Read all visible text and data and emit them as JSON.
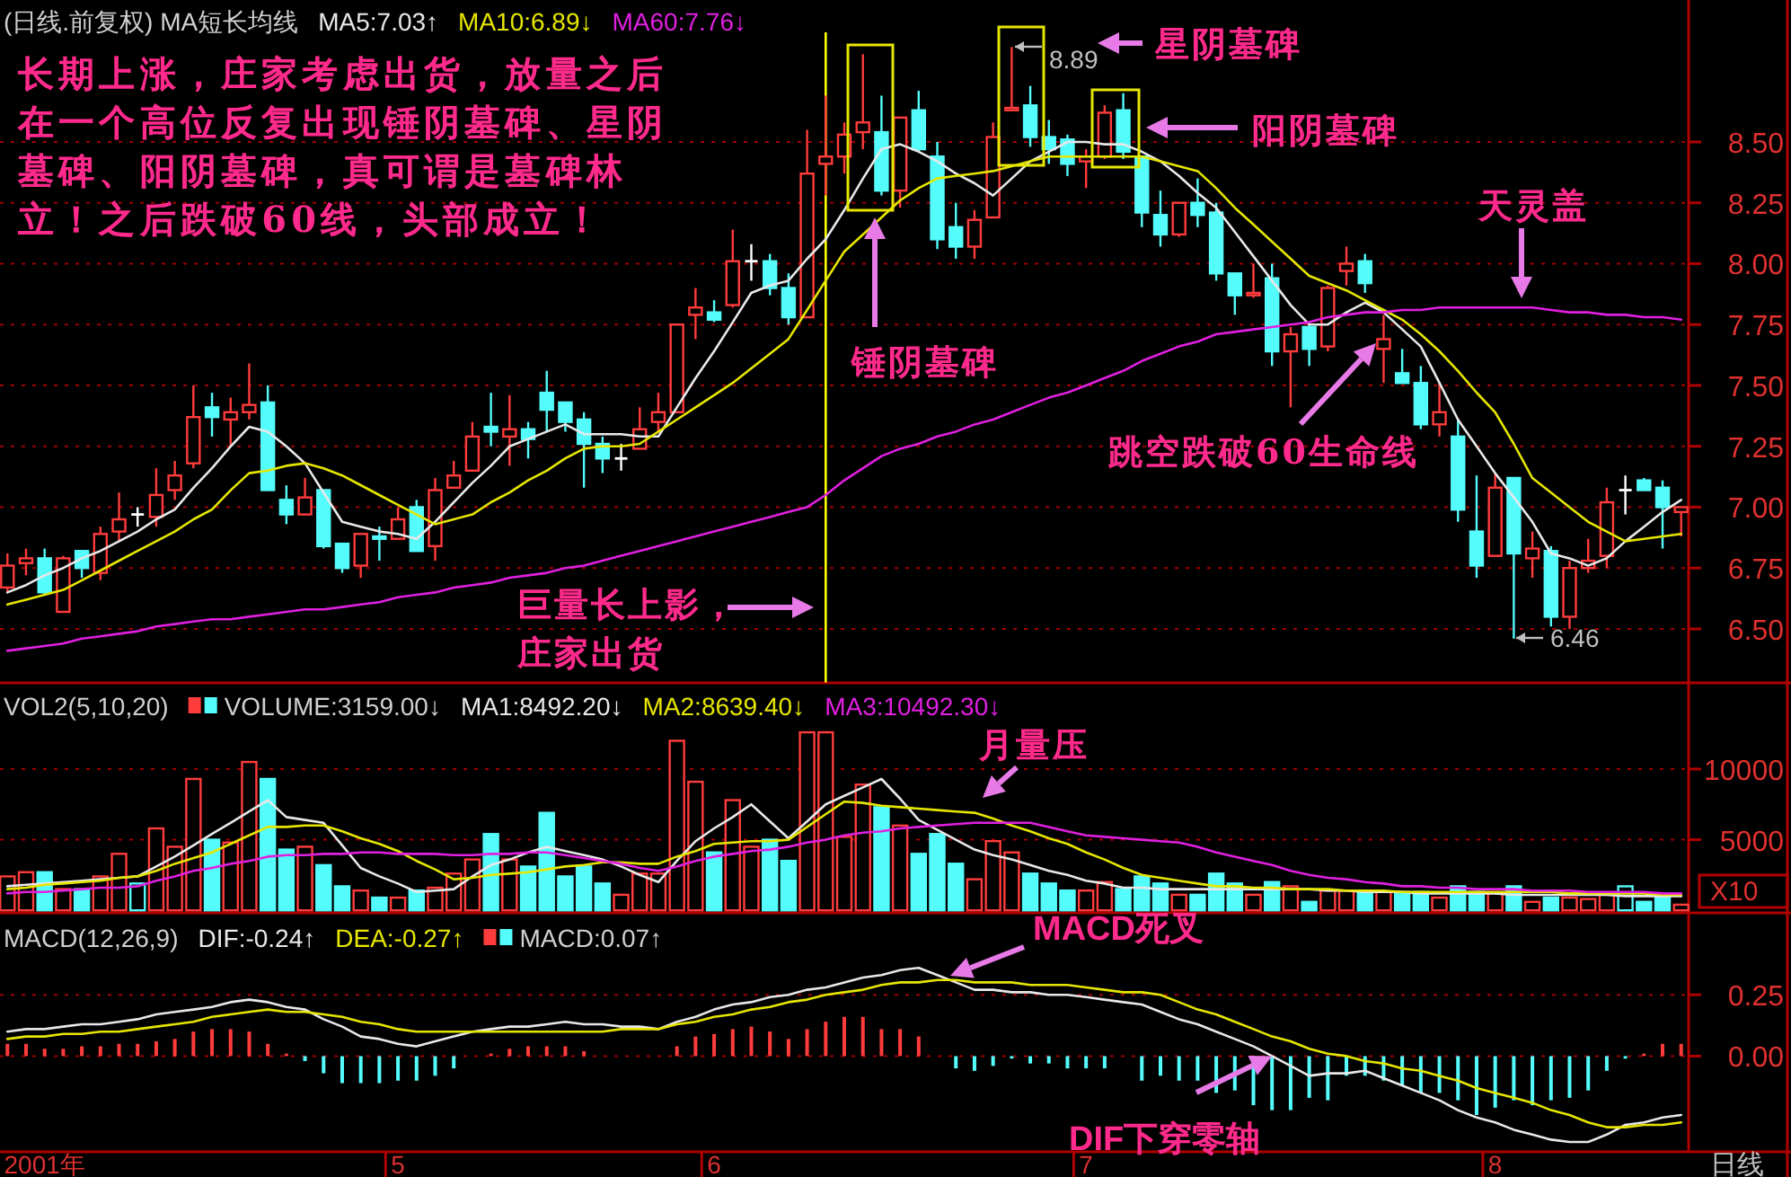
{
  "chart_data": [
    {
      "type": "candlestick",
      "title": "(日线.前复权) MA短长均线",
      "legend": "top left",
      "grid": "y",
      "categories": [
        null,
        null,
        null,
        null,
        null,
        null,
        null,
        null,
        null,
        null,
        null,
        null,
        null,
        null,
        null,
        null,
        null,
        null,
        null,
        null,
        null,
        null,
        null,
        null,
        null,
        null,
        null,
        null,
        null,
        null,
        null,
        null,
        null,
        null,
        null,
        null,
        null,
        null,
        null,
        null,
        null,
        null,
        null,
        null,
        null,
        null,
        null,
        null,
        null,
        null,
        null,
        null,
        null,
        null,
        null,
        null,
        null,
        null,
        null,
        null,
        null,
        null,
        null,
        null,
        null,
        null,
        null,
        null,
        null,
        null,
        null,
        null,
        null,
        null,
        null,
        null,
        null,
        null,
        null,
        null,
        null,
        null,
        null,
        null,
        null,
        null,
        null,
        null,
        null,
        null,
        null
      ],
      "ylim": [
        6.28,
        8.95
      ],
      "tick_labels": "y",
      "yticks": [
        {
          "value": 6.5,
          "label": "6.50"
        },
        {
          "value": 6.75,
          "label": "6.75"
        },
        {
          "value": 7.0,
          "label": "7.00"
        },
        {
          "value": 7.25,
          "label": "7.25"
        },
        {
          "value": 7.5,
          "label": "7.50"
        },
        {
          "value": 7.75,
          "label": "7.75"
        },
        {
          "value": 8.0,
          "label": "8.00"
        },
        {
          "value": 8.25,
          "label": "8.25"
        },
        {
          "value": 8.5,
          "label": "8.50"
        }
      ],
      "ohlc": [
        [
          6.67,
          6.81,
          6.65,
          6.76
        ],
        [
          6.77,
          6.83,
          6.72,
          6.79
        ],
        [
          6.79,
          6.83,
          6.64,
          6.65
        ],
        [
          6.57,
          6.8,
          6.57,
          6.79
        ],
        [
          6.82,
          6.82,
          6.71,
          6.75
        ],
        [
          6.73,
          6.92,
          6.7,
          6.89
        ],
        [
          6.9,
          7.06,
          6.86,
          6.95
        ],
        [
          6.97,
          7.0,
          6.92,
          6.97
        ],
        [
          6.96,
          7.16,
          6.92,
          7.05
        ],
        [
          7.07,
          7.19,
          7.03,
          7.13
        ],
        [
          7.18,
          7.5,
          7.16,
          7.37
        ],
        [
          7.41,
          7.47,
          7.29,
          7.37
        ],
        [
          7.36,
          7.45,
          7.25,
          7.39
        ],
        [
          7.39,
          7.59,
          7.36,
          7.42
        ],
        [
          7.43,
          7.5,
          7.07,
          7.07
        ],
        [
          7.03,
          7.09,
          6.93,
          6.97
        ],
        [
          6.97,
          7.12,
          6.97,
          7.04
        ],
        [
          7.07,
          7.07,
          6.83,
          6.84
        ],
        [
          6.85,
          6.85,
          6.73,
          6.75
        ],
        [
          6.76,
          6.89,
          6.71,
          6.89
        ],
        [
          6.88,
          6.92,
          6.78,
          6.87
        ],
        [
          6.87,
          7.0,
          6.87,
          6.95
        ],
        [
          7.0,
          7.03,
          6.82,
          6.82
        ],
        [
          6.84,
          7.12,
          6.78,
          7.07
        ],
        [
          7.08,
          7.19,
          7.08,
          7.13
        ],
        [
          7.15,
          7.35,
          7.15,
          7.29
        ],
        [
          7.33,
          7.47,
          7.25,
          7.31
        ],
        [
          7.29,
          7.46,
          7.17,
          7.32
        ],
        [
          7.32,
          7.35,
          7.2,
          7.28
        ],
        [
          7.47,
          7.56,
          7.31,
          7.4
        ],
        [
          7.43,
          7.43,
          7.31,
          7.35
        ],
        [
          7.36,
          7.39,
          7.08,
          7.26
        ],
        [
          7.26,
          7.29,
          7.14,
          7.2
        ],
        [
          7.2,
          7.26,
          7.15,
          7.2
        ],
        [
          7.24,
          7.41,
          7.24,
          7.32
        ],
        [
          7.35,
          7.47,
          7.31,
          7.39
        ],
        [
          7.39,
          7.75,
          7.39,
          7.75
        ],
        [
          7.79,
          7.9,
          7.69,
          7.82
        ],
        [
          7.8,
          7.85,
          7.76,
          7.77
        ],
        [
          7.83,
          8.14,
          7.82,
          8.01
        ],
        [
          8.01,
          8.08,
          7.93,
          8.01
        ],
        [
          8.01,
          8.04,
          7.87,
          7.9
        ],
        [
          7.9,
          7.96,
          7.75,
          7.78
        ],
        [
          7.78,
          8.55,
          7.78,
          8.37
        ],
        [
          8.41,
          8.69,
          8.28,
          8.44
        ],
        [
          8.44,
          8.58,
          8.37,
          8.53
        ],
        [
          8.54,
          8.86,
          8.47,
          8.58
        ],
        [
          8.54,
          8.69,
          8.28,
          8.3
        ],
        [
          8.3,
          8.6,
          8.23,
          8.6
        ],
        [
          8.63,
          8.71,
          8.46,
          8.47
        ],
        [
          8.44,
          8.5,
          8.06,
          8.1
        ],
        [
          8.15,
          8.25,
          8.02,
          8.07
        ],
        [
          8.07,
          8.22,
          8.02,
          8.18
        ],
        [
          8.19,
          8.58,
          8.19,
          8.52
        ],
        [
          8.63,
          8.89,
          8.63,
          8.64
        ],
        [
          8.65,
          8.73,
          8.48,
          8.52
        ],
        [
          8.52,
          8.59,
          8.41,
          8.47
        ],
        [
          8.51,
          8.53,
          8.36,
          8.41
        ],
        [
          8.42,
          8.47,
          8.31,
          8.44
        ],
        [
          8.44,
          8.65,
          8.43,
          8.62
        ],
        [
          8.63,
          8.7,
          8.43,
          8.46
        ],
        [
          8.44,
          8.44,
          8.15,
          8.21
        ],
        [
          8.2,
          8.3,
          8.07,
          8.12
        ],
        [
          8.12,
          8.25,
          8.11,
          8.25
        ],
        [
          8.25,
          8.35,
          8.15,
          8.2
        ],
        [
          8.21,
          8.25,
          7.93,
          7.96
        ],
        [
          7.96,
          7.96,
          7.79,
          7.87
        ],
        [
          7.87,
          8.0,
          7.86,
          7.88
        ],
        [
          7.94,
          8.0,
          7.58,
          7.64
        ],
        [
          7.64,
          7.74,
          7.41,
          7.71
        ],
        [
          7.74,
          7.76,
          7.58,
          7.65
        ],
        [
          7.66,
          7.91,
          7.64,
          7.9
        ],
        [
          7.97,
          8.07,
          7.91,
          8.0
        ],
        [
          8.01,
          8.04,
          7.88,
          7.92
        ],
        [
          7.65,
          7.79,
          7.51,
          7.69
        ],
        [
          7.55,
          7.65,
          7.51,
          7.51
        ],
        [
          7.51,
          7.58,
          7.32,
          7.34
        ],
        [
          7.34,
          7.51,
          7.29,
          7.39
        ],
        [
          7.29,
          7.36,
          6.94,
          6.99
        ],
        [
          6.9,
          7.13,
          6.71,
          6.76
        ],
        [
          6.8,
          7.14,
          6.8,
          7.08
        ],
        [
          7.12,
          7.12,
          6.46,
          6.81
        ],
        [
          6.79,
          6.9,
          6.71,
          6.83
        ],
        [
          6.82,
          6.84,
          6.51,
          6.55
        ],
        [
          6.55,
          6.78,
          6.5,
          6.75
        ],
        [
          6.75,
          6.87,
          6.73,
          6.78
        ],
        [
          6.8,
          7.08,
          6.75,
          7.02
        ],
        [
          7.07,
          7.13,
          6.97,
          7.07
        ],
        [
          7.11,
          7.12,
          7.07,
          7.07
        ],
        [
          7.08,
          7.11,
          6.83,
          7.0
        ],
        [
          6.98,
          7.0,
          6.88,
          7.0
        ]
      ],
      "colors": [
        "#ff3c3c",
        "#ff3c3c",
        "#54fcfc",
        "#ff3c3c",
        "#54fcfc",
        "#ff3c3c",
        "#ff3c3c",
        "#ffffff",
        "#ff3c3c",
        "#ff3c3c",
        "#ff3c3c",
        "#54fcfc",
        "#ff3c3c",
        "#ff3c3c",
        "#54fcfc",
        "#54fcfc",
        "#ff3c3c",
        "#54fcfc",
        "#54fcfc",
        "#ff3c3c",
        "#54fcfc",
        "#ff3c3c",
        "#54fcfc",
        "#ff3c3c",
        "#ff3c3c",
        "#ff3c3c",
        "#54fcfc",
        "#ff3c3c",
        "#54fcfc",
        "#54fcfc",
        "#54fcfc",
        "#54fcfc",
        "#54fcfc",
        "#ffffff",
        "#ff3c3c",
        "#ff3c3c",
        "#ff3c3c",
        "#ff3c3c",
        "#54fcfc",
        "#ff3c3c",
        "#ffffff",
        "#54fcfc",
        "#54fcfc",
        "#ff3c3c",
        "#ff3c3c",
        "#ff3c3c",
        "#ff3c3c",
        "#54fcfc",
        "#ff3c3c",
        "#54fcfc",
        "#54fcfc",
        "#54fcfc",
        "#ff3c3c",
        "#ff3c3c",
        "#ff3c3c",
        "#54fcfc",
        "#54fcfc",
        "#54fcfc",
        "#ff3c3c",
        "#ff3c3c",
        "#54fcfc",
        "#54fcfc",
        "#54fcfc",
        "#ff3c3c",
        "#54fcfc",
        "#54fcfc",
        "#54fcfc",
        "#ff3c3c",
        "#54fcfc",
        "#ff3c3c",
        "#54fcfc",
        "#ff3c3c",
        "#ff3c3c",
        "#54fcfc",
        "#ff3c3c",
        "#54fcfc",
        "#54fcfc",
        "#ff3c3c",
        "#54fcfc",
        "#54fcfc",
        "#ff3c3c",
        "#54fcfc",
        "#ff3c3c",
        "#54fcfc",
        "#ff3c3c",
        "#ff3c3c",
        "#ff3c3c",
        "#ffffff",
        "#54fcfc",
        "#54fcfc",
        "#ff3c3c"
      ],
      "series": [
        {
          "name": "MA5:7.03↑",
          "type": "line",
          "color": "#e8e8e8",
          "values": [
            6.65,
            6.68,
            6.72,
            6.75,
            6.79,
            6.82,
            6.86,
            6.9,
            6.95,
            6.99,
            7.08,
            7.16,
            7.25,
            7.33,
            7.31,
            7.25,
            7.18,
            7.06,
            6.94,
            6.92,
            6.9,
            6.89,
            6.87,
            6.94,
            7.02,
            7.1,
            7.17,
            7.25,
            7.28,
            7.31,
            7.34,
            7.3,
            7.3,
            7.3,
            7.29,
            7.29,
            7.41,
            7.53,
            7.64,
            7.76,
            7.88,
            7.91,
            7.93,
            8.02,
            8.1,
            8.22,
            8.35,
            8.47,
            8.49,
            8.46,
            8.42,
            8.37,
            8.33,
            8.28,
            8.35,
            8.42,
            8.46,
            8.5,
            8.5,
            8.49,
            8.49,
            8.46,
            8.42,
            8.36,
            8.29,
            8.23,
            8.13,
            8.03,
            7.93,
            7.83,
            7.75,
            7.75,
            7.8,
            7.84,
            7.8,
            7.73,
            7.66,
            7.51,
            7.36,
            7.25,
            7.14,
            7.04,
            6.94,
            6.81,
            6.79,
            6.76,
            6.79,
            6.86,
            6.92,
            6.98,
            7.03
          ]
        },
        {
          "name": "MA10:6.89↓",
          "type": "line",
          "color": "#e6e600",
          "values": [
            6.6,
            6.62,
            6.64,
            6.66,
            6.7,
            6.74,
            6.78,
            6.82,
            6.86,
            6.9,
            6.95,
            6.99,
            7.07,
            7.14,
            7.15,
            7.17,
            7.18,
            7.16,
            7.13,
            7.09,
            7.05,
            7.01,
            6.97,
            6.93,
            6.95,
            6.97,
            7.02,
            7.06,
            7.11,
            7.15,
            7.2,
            7.24,
            7.25,
            7.25,
            7.26,
            7.31,
            7.36,
            7.41,
            7.46,
            7.51,
            7.57,
            7.63,
            7.69,
            7.81,
            7.93,
            8.05,
            8.12,
            8.19,
            8.26,
            8.31,
            8.35,
            8.36,
            8.37,
            8.38,
            8.4,
            8.42,
            8.44,
            8.44,
            8.44,
            8.44,
            8.44,
            8.44,
            8.42,
            8.4,
            8.38,
            8.31,
            8.23,
            8.16,
            8.09,
            8.02,
            7.95,
            7.92,
            7.89,
            7.85,
            7.81,
            7.77,
            7.71,
            7.64,
            7.56,
            7.47,
            7.39,
            7.26,
            7.12,
            7.06,
            7.0,
            6.94,
            6.9,
            6.86,
            6.87,
            6.88,
            6.89
          ]
        },
        {
          "name": "MA60:7.76↓",
          "type": "line",
          "color": "#e020e0",
          "values": [
            6.41,
            6.42,
            6.43,
            6.44,
            6.46,
            6.47,
            6.48,
            6.49,
            6.51,
            6.52,
            6.53,
            6.54,
            6.54,
            6.55,
            6.56,
            6.57,
            6.58,
            6.58,
            6.59,
            6.6,
            6.61,
            6.63,
            6.64,
            6.65,
            6.67,
            6.68,
            6.69,
            6.71,
            6.72,
            6.73,
            6.75,
            6.76,
            6.78,
            6.8,
            6.82,
            6.84,
            6.86,
            6.88,
            6.9,
            6.92,
            6.94,
            6.96,
            6.98,
            7.0,
            7.05,
            7.11,
            7.16,
            7.21,
            7.24,
            7.26,
            7.29,
            7.31,
            7.34,
            7.36,
            7.39,
            7.42,
            7.45,
            7.47,
            7.5,
            7.53,
            7.56,
            7.6,
            7.63,
            7.66,
            7.68,
            7.71,
            7.72,
            7.73,
            7.74,
            7.75,
            7.76,
            7.78,
            7.79,
            7.8,
            7.8,
            7.81,
            7.81,
            7.82,
            7.82,
            7.82,
            7.82,
            7.82,
            7.82,
            7.81,
            7.8,
            7.8,
            7.79,
            7.79,
            7.78,
            7.78,
            7.77
          ]
        }
      ],
      "annotations": [
        "长期上涨，庄家考虑出货，放量之后在一个高位反复出现锤阴墓碑、星阴墓碑、阳阴墓碑，真可谓是墓碑林立！之后跌破60线，头部成立！",
        "锤阴墓碑",
        "星阴墓碑",
        "阳阴墓碑",
        "天灵盖",
        "跳空跌破60生命线",
        "巨量长上影，庄家出货",
        "8.89",
        "6.46"
      ]
    },
    {
      "type": "bar",
      "title": "VOL2(5,10,20)",
      "legend": "top left",
      "grid": "y",
      "categories": [
        null,
        null,
        null,
        null,
        null,
        null,
        null,
        null,
        null,
        null,
        null,
        null,
        null,
        null,
        null,
        null,
        null,
        null,
        null,
        null,
        null,
        null,
        null,
        null,
        null,
        null,
        null,
        null,
        null,
        null,
        null,
        null,
        null,
        null,
        null,
        null,
        null,
        null,
        null,
        null,
        null,
        null,
        null,
        null,
        null,
        null,
        null,
        null,
        null,
        null,
        null,
        null,
        null,
        null,
        null,
        null,
        null,
        null,
        null,
        null,
        null,
        null,
        null,
        null,
        null,
        null,
        null,
        null,
        null,
        null,
        null,
        null,
        null,
        null,
        null,
        null,
        null,
        null,
        null,
        null,
        null,
        null,
        null,
        null,
        null,
        null,
        null,
        null,
        null,
        null,
        null
      ],
      "ylim": [
        0,
        16000
      ],
      "yticks": [
        5000,
        10000
      ],
      "tick_labels": "y",
      "series": [
        {
          "name": "VOLUME:3159.00↓",
          "type": "bar",
          "values": [
            2400,
            2700,
            2700,
            1500,
            1500,
            2400,
            4000,
            1900,
            5800,
            4500,
            9300,
            5000,
            4800,
            10500,
            9300,
            4300,
            4500,
            3200,
            1700,
            1400,
            900,
            900,
            1400,
            1600,
            2600,
            3600,
            5400,
            3600,
            3100,
            6900,
            2400,
            3100,
            1900,
            1100,
            2600,
            2600,
            12000,
            9100,
            4100,
            7800,
            4500,
            5000,
            3500,
            12600,
            12600,
            5200,
            8900,
            7300,
            6000,
            4000,
            5400,
            3300,
            2200,
            4900,
            4100,
            2600,
            1900,
            1400,
            1400,
            2000,
            1500,
            2400,
            1900,
            1100,
            1100,
            2600,
            1900,
            1100,
            2000,
            1700,
            600,
            1400,
            1400,
            1400,
            1300,
            1300,
            1300,
            900,
            1700,
            1300,
            1200,
            1700,
            600,
            900,
            900,
            800,
            1100,
            1700,
            600,
            900,
            400
          ],
          "colors": [
            "#ff3c3c",
            "#ff3c3c",
            "#54fcfc",
            "#ff3c3c",
            "#54fcfc",
            "#ff3c3c",
            "#ff3c3c",
            "#54fcfc",
            "#ff3c3c",
            "#ff3c3c",
            "#ff3c3c",
            "#54fcfc",
            "#ff3c3c",
            "#ff3c3c",
            "#54fcfc",
            "#54fcfc",
            "#ff3c3c",
            "#54fcfc",
            "#54fcfc",
            "#ff3c3c",
            "#54fcfc",
            "#ff3c3c",
            "#54fcfc",
            "#ff3c3c",
            "#ff3c3c",
            "#ff3c3c",
            "#54fcfc",
            "#ff3c3c",
            "#54fcfc",
            "#54fcfc",
            "#54fcfc",
            "#54fcfc",
            "#54fcfc",
            "#ff3c3c",
            "#ff3c3c",
            "#ff3c3c",
            "#ff3c3c",
            "#ff3c3c",
            "#54fcfc",
            "#ff3c3c",
            "#ff3c3c",
            "#54fcfc",
            "#54fcfc",
            "#ff3c3c",
            "#ff3c3c",
            "#ff3c3c",
            "#ff3c3c",
            "#54fcfc",
            "#ff3c3c",
            "#54fcfc",
            "#54fcfc",
            "#54fcfc",
            "#ff3c3c",
            "#ff3c3c",
            "#ff3c3c",
            "#54fcfc",
            "#54fcfc",
            "#54fcfc",
            "#ff3c3c",
            "#ff3c3c",
            "#54fcfc",
            "#54fcfc",
            "#54fcfc",
            "#ff3c3c",
            "#54fcfc",
            "#54fcfc",
            "#54fcfc",
            "#ff3c3c",
            "#54fcfc",
            "#ff3c3c",
            "#54fcfc",
            "#ff3c3c",
            "#ff3c3c",
            "#54fcfc",
            "#ff3c3c",
            "#54fcfc",
            "#54fcfc",
            "#ff3c3c",
            "#54fcfc",
            "#54fcfc",
            "#ff3c3c",
            "#54fcfc",
            "#ff3c3c",
            "#54fcfc",
            "#ff3c3c",
            "#ff3c3c",
            "#ff3c3c",
            "#54fcfc",
            "#54fcfc",
            "#54fcfc",
            "#ff3c3c"
          ]
        },
        {
          "name": "MA1:8492.20↓",
          "type": "line",
          "color": "#e8e8e8",
          "values": [
            1700,
            1800,
            1900,
            2000,
            2100,
            2200,
            2300,
            2400,
            3100,
            3800,
            4600,
            5400,
            6200,
            7000,
            7800,
            6600,
            6400,
            6200,
            4600,
            3000,
            2400,
            1900,
            1300,
            1400,
            1500,
            2400,
            3200,
            3600,
            4100,
            4500,
            4200,
            3900,
            3600,
            3100,
            2500,
            2000,
            3500,
            4900,
            5800,
            6600,
            7500,
            6300,
            5100,
            6300,
            7500,
            8100,
            8700,
            9300,
            7900,
            6400,
            5700,
            5000,
            4300,
            3900,
            3600,
            3200,
            2800,
            2500,
            2100,
            1900,
            1600,
            1600,
            1500,
            1500,
            1500,
            1500,
            1500,
            1500,
            1500,
            1500,
            1500,
            1400,
            1400,
            1300,
            1300,
            1300,
            1200,
            1200,
            1200,
            1200,
            1200,
            1100,
            1100,
            1100,
            1100,
            1100,
            1100,
            1000,
            1000,
            1000,
            1000
          ]
        },
        {
          "name": "MA2:8639.40↓",
          "type": "line",
          "color": "#e6e600",
          "values": [
            1500,
            1600,
            1800,
            1900,
            2000,
            2100,
            2300,
            2400,
            2800,
            3300,
            3700,
            4100,
            4700,
            5300,
            5900,
            5900,
            6000,
            6000,
            5600,
            5100,
            4700,
            4200,
            3500,
            2900,
            2200,
            2300,
            2500,
            2600,
            2700,
            2900,
            3100,
            3200,
            3400,
            3400,
            3300,
            3300,
            3800,
            4200,
            4700,
            4800,
            4900,
            4900,
            5000,
            5900,
            6800,
            7700,
            7600,
            7400,
            7300,
            7200,
            7100,
            7000,
            6900,
            6500,
            6000,
            5600,
            5100,
            4700,
            4100,
            3600,
            3000,
            2500,
            2300,
            2100,
            1900,
            1700,
            1700,
            1600,
            1600,
            1500,
            1500,
            1500,
            1400,
            1400,
            1400,
            1300,
            1300,
            1300,
            1300,
            1300,
            1300,
            1300,
            1300,
            1300,
            1200,
            1200,
            1200,
            1200,
            1200,
            1100,
            1100
          ]
        },
        {
          "name": "MA3:10492.30↓",
          "type": "line",
          "color": "#e020e0",
          "values": [
            1200,
            1300,
            1300,
            1400,
            1500,
            1600,
            1600,
            1700,
            2100,
            2400,
            2800,
            3000,
            3300,
            3500,
            3800,
            3900,
            3900,
            4000,
            4000,
            4100,
            4100,
            4000,
            4000,
            4000,
            3900,
            3900,
            4000,
            4000,
            4100,
            4100,
            3900,
            3700,
            3500,
            3300,
            3000,
            2800,
            3100,
            3500,
            3800,
            4000,
            4200,
            4300,
            4500,
            4800,
            5000,
            5300,
            5500,
            5600,
            5800,
            5900,
            6000,
            6100,
            6200,
            6200,
            6200,
            6200,
            5900,
            5600,
            5300,
            5200,
            5100,
            5000,
            4900,
            4800,
            4500,
            4100,
            3800,
            3500,
            3200,
            2800,
            2500,
            2300,
            2200,
            2000,
            1900,
            1700,
            1700,
            1600,
            1600,
            1500,
            1500,
            1500,
            1400,
            1400,
            1400,
            1300,
            1300,
            1300,
            1300,
            1200,
            1200
          ]
        }
      ],
      "annotations": [
        "月量压",
        "X10"
      ]
    },
    {
      "type": "line",
      "title": "MACD(12,26,9)",
      "legend": "top left",
      "grid": "y",
      "categories": [
        null,
        null,
        "2001年",
        null,
        null,
        null,
        null,
        null,
        null,
        null,
        null,
        null,
        null,
        null,
        null,
        null,
        null,
        null,
        null,
        null,
        null,
        "5",
        null,
        null,
        null,
        null,
        null,
        null,
        null,
        null,
        null,
        null,
        null,
        null,
        null,
        null,
        null,
        null,
        "6",
        null,
        null,
        null,
        null,
        null,
        null,
        null,
        null,
        null,
        null,
        null,
        null,
        null,
        null,
        null,
        null,
        null,
        null,
        null,
        "7",
        null,
        null,
        null,
        null,
        null,
        null,
        null,
        null,
        null,
        null,
        null,
        null,
        null,
        null,
        null,
        null,
        null,
        null,
        null,
        null,
        null,
        "8",
        null,
        null,
        null,
        null,
        null,
        null,
        null,
        null,
        null,
        null
      ],
      "ylim": [
        -0.39,
        0.58
      ],
      "yticks": [
        {
          "value": 0,
          "label": "0.00"
        },
        {
          "value": 0.25,
          "label": "0.25"
        }
      ],
      "series": [
        {
          "name": "DIF:-0.24↑",
          "type": "line",
          "color": "#e8e8e8",
          "values": [
            0.1,
            0.11,
            0.11,
            0.12,
            0.13,
            0.13,
            0.14,
            0.15,
            0.17,
            0.18,
            0.19,
            0.2,
            0.22,
            0.23,
            0.22,
            0.2,
            0.19,
            0.15,
            0.12,
            0.08,
            0.07,
            0.05,
            0.04,
            0.06,
            0.08,
            0.1,
            0.11,
            0.12,
            0.12,
            0.13,
            0.14,
            0.13,
            0.13,
            0.12,
            0.12,
            0.11,
            0.14,
            0.16,
            0.19,
            0.21,
            0.22,
            0.24,
            0.25,
            0.27,
            0.28,
            0.3,
            0.32,
            0.33,
            0.35,
            0.36,
            0.33,
            0.3,
            0.27,
            0.27,
            0.26,
            0.26,
            0.25,
            0.25,
            0.24,
            0.23,
            0.22,
            0.21,
            0.18,
            0.15,
            0.13,
            0.1,
            0.07,
            0.04,
            0.0,
            -0.04,
            -0.08,
            -0.07,
            -0.07,
            -0.06,
            -0.09,
            -0.12,
            -0.15,
            -0.18,
            -0.22,
            -0.25,
            -0.27,
            -0.3,
            -0.32,
            -0.34,
            -0.35,
            -0.35,
            -0.32,
            -0.28,
            -0.27,
            -0.25,
            -0.24
          ]
        },
        {
          "name": "DEA:-0.27↑",
          "type": "line",
          "color": "#e6e600",
          "values": [
            0.07,
            0.08,
            0.08,
            0.09,
            0.09,
            0.1,
            0.1,
            0.11,
            0.12,
            0.13,
            0.14,
            0.16,
            0.17,
            0.18,
            0.19,
            0.18,
            0.18,
            0.17,
            0.16,
            0.14,
            0.13,
            0.11,
            0.1,
            0.1,
            0.1,
            0.1,
            0.1,
            0.1,
            0.1,
            0.1,
            0.1,
            0.1,
            0.1,
            0.11,
            0.11,
            0.11,
            0.13,
            0.14,
            0.16,
            0.17,
            0.19,
            0.2,
            0.22,
            0.23,
            0.25,
            0.26,
            0.27,
            0.29,
            0.3,
            0.3,
            0.31,
            0.31,
            0.3,
            0.3,
            0.3,
            0.29,
            0.29,
            0.29,
            0.28,
            0.27,
            0.26,
            0.26,
            0.25,
            0.22,
            0.19,
            0.17,
            0.14,
            0.11,
            0.08,
            0.06,
            0.03,
            0.01,
            0.0,
            -0.02,
            -0.03,
            -0.05,
            -0.06,
            -0.08,
            -0.1,
            -0.13,
            -0.15,
            -0.17,
            -0.19,
            -0.22,
            -0.24,
            -0.27,
            -0.29,
            -0.29,
            -0.28,
            -0.28,
            -0.27
          ]
        },
        {
          "name": "MACD:0.07↑",
          "type": "bar",
          "values": [
            0.05,
            0.05,
            0.03,
            0.03,
            0.04,
            0.04,
            0.05,
            0.05,
            0.06,
            0.07,
            0.1,
            0.11,
            0.11,
            0.1,
            0.05,
            0.01,
            -0.02,
            -0.07,
            -0.11,
            -0.11,
            -0.11,
            -0.1,
            -0.1,
            -0.08,
            -0.05,
            0,
            0.01,
            0.03,
            0.04,
            0.04,
            0.04,
            0.02,
            0,
            0,
            0,
            0,
            0.04,
            0.08,
            0.09,
            0.11,
            0.12,
            0.1,
            0.07,
            0.11,
            0.14,
            0.16,
            0.16,
            0.11,
            0.11,
            0.08,
            0,
            -0.05,
            -0.06,
            -0.04,
            -0.01,
            -0.03,
            -0.03,
            -0.05,
            -0.05,
            -0.05,
            0,
            -0.1,
            -0.08,
            -0.1,
            -0.1,
            -0.15,
            -0.14,
            -0.2,
            -0.22,
            -0.22,
            -0.17,
            -0.18,
            -0.08,
            -0.08,
            -0.1,
            -0.12,
            -0.15,
            -0.15,
            -0.18,
            -0.24,
            -0.21,
            -0.18,
            -0.2,
            -0.18,
            -0.17,
            -0.14,
            -0.06,
            -0.01,
            0.01,
            0.05,
            0.05
          ],
          "colors": [
            "#ff3c3c",
            "#ff3c3c",
            "#ff3c3c",
            "#ff3c3c",
            "#ff3c3c",
            "#ff3c3c",
            "#ff3c3c",
            "#ff3c3c",
            "#ff3c3c",
            "#ff3c3c",
            "#ff3c3c",
            "#ff3c3c",
            "#ff3c3c",
            "#ff3c3c",
            "#ff3c3c",
            "#ff3c3c",
            "#54fcfc",
            "#54fcfc",
            "#54fcfc",
            "#54fcfc",
            "#54fcfc",
            "#54fcfc",
            "#54fcfc",
            "#54fcfc",
            "#54fcfc",
            "#ff3c3c",
            "#ff3c3c",
            "#ff3c3c",
            "#ff3c3c",
            "#ff3c3c",
            "#ff3c3c",
            "#ff3c3c",
            "#ff3c3c",
            "#ff3c3c",
            "#ff3c3c",
            "#ff3c3c",
            "#ff3c3c",
            "#ff3c3c",
            "#ff3c3c",
            "#ff3c3c",
            "#ff3c3c",
            "#ff3c3c",
            "#ff3c3c",
            "#ff3c3c",
            "#ff3c3c",
            "#ff3c3c",
            "#ff3c3c",
            "#ff3c3c",
            "#ff3c3c",
            "#ff3c3c",
            "#ff3c3c",
            "#54fcfc",
            "#54fcfc",
            "#54fcfc",
            "#54fcfc",
            "#54fcfc",
            "#54fcfc",
            "#54fcfc",
            "#54fcfc",
            "#54fcfc",
            "#ff3c3c",
            "#54fcfc",
            "#54fcfc",
            "#54fcfc",
            "#54fcfc",
            "#54fcfc",
            "#54fcfc",
            "#54fcfc",
            "#54fcfc",
            "#54fcfc",
            "#54fcfc",
            "#54fcfc",
            "#54fcfc",
            "#54fcfc",
            "#54fcfc",
            "#54fcfc",
            "#54fcfc",
            "#54fcfc",
            "#54fcfc",
            "#54fcfc",
            "#54fcfc",
            "#54fcfc",
            "#54fcfc",
            "#54fcfc",
            "#54fcfc",
            "#54fcfc",
            "#54fcfc",
            "#54fcfc",
            "#ff3c3c",
            "#ff3c3c",
            "#ff3c3c"
          ]
        }
      ],
      "annotations": [
        "MACD死叉",
        {
          "text": "DIF下穿零轴",
          "y": 0
        },
        "日线"
      ]
    }
  ]
}
